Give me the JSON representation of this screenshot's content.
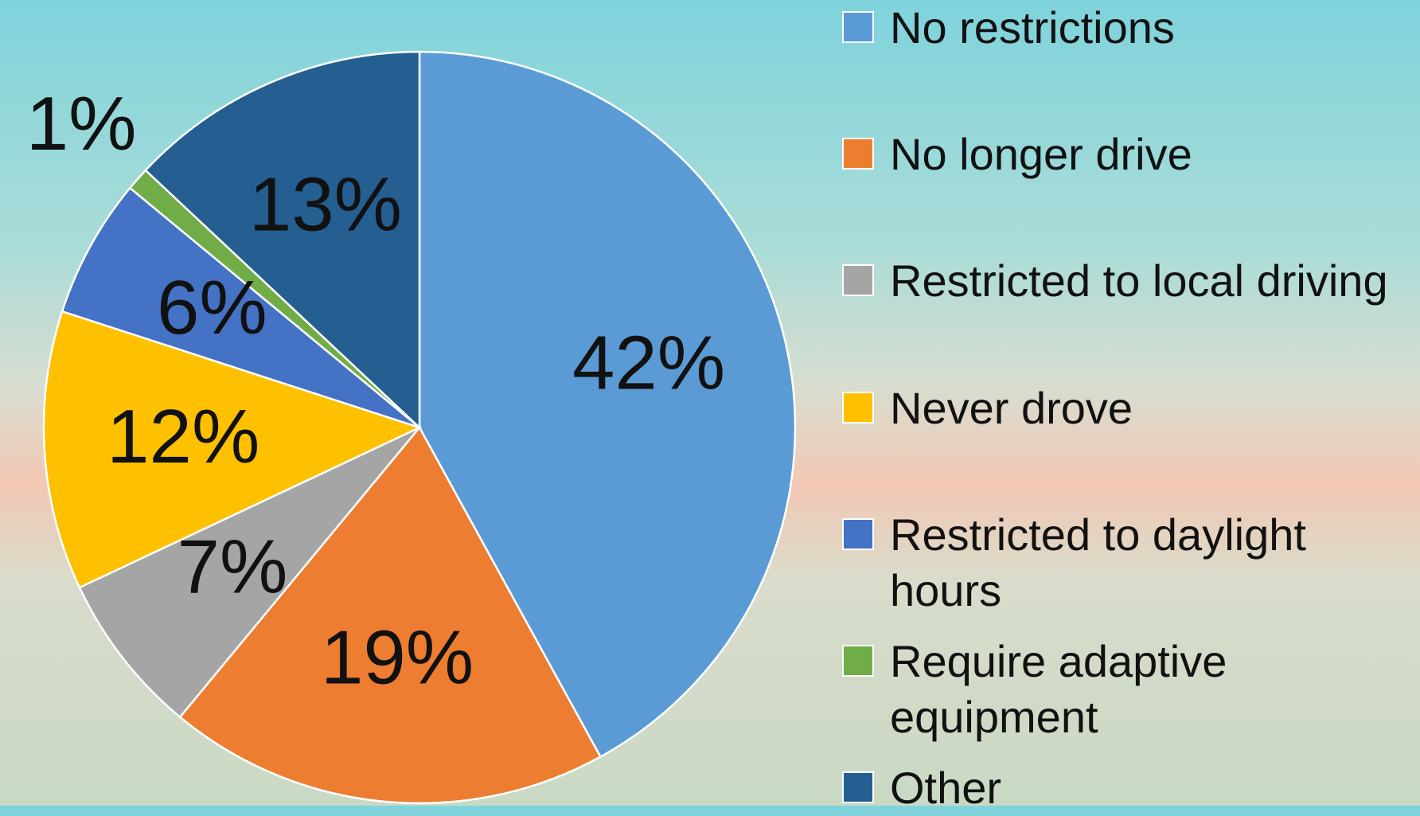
{
  "chart_data": {
    "type": "pie",
    "categories": [
      "No restrictions",
      "No longer drive",
      "Restricted to local driving",
      "Never drove",
      "Restricted to daylight hours",
      "Require adaptive equipment",
      "Other"
    ],
    "values": [
      42,
      19,
      7,
      12,
      6,
      1,
      13
    ],
    "value_labels": [
      "42%",
      "19%",
      "7%",
      "12%",
      "6%",
      "1%",
      "13%"
    ],
    "colors": [
      "#5b9bd5",
      "#ed7d31",
      "#a5a5a5",
      "#ffc000",
      "#4472c4",
      "#70ad47",
      "#255e91"
    ],
    "legend": "right"
  }
}
